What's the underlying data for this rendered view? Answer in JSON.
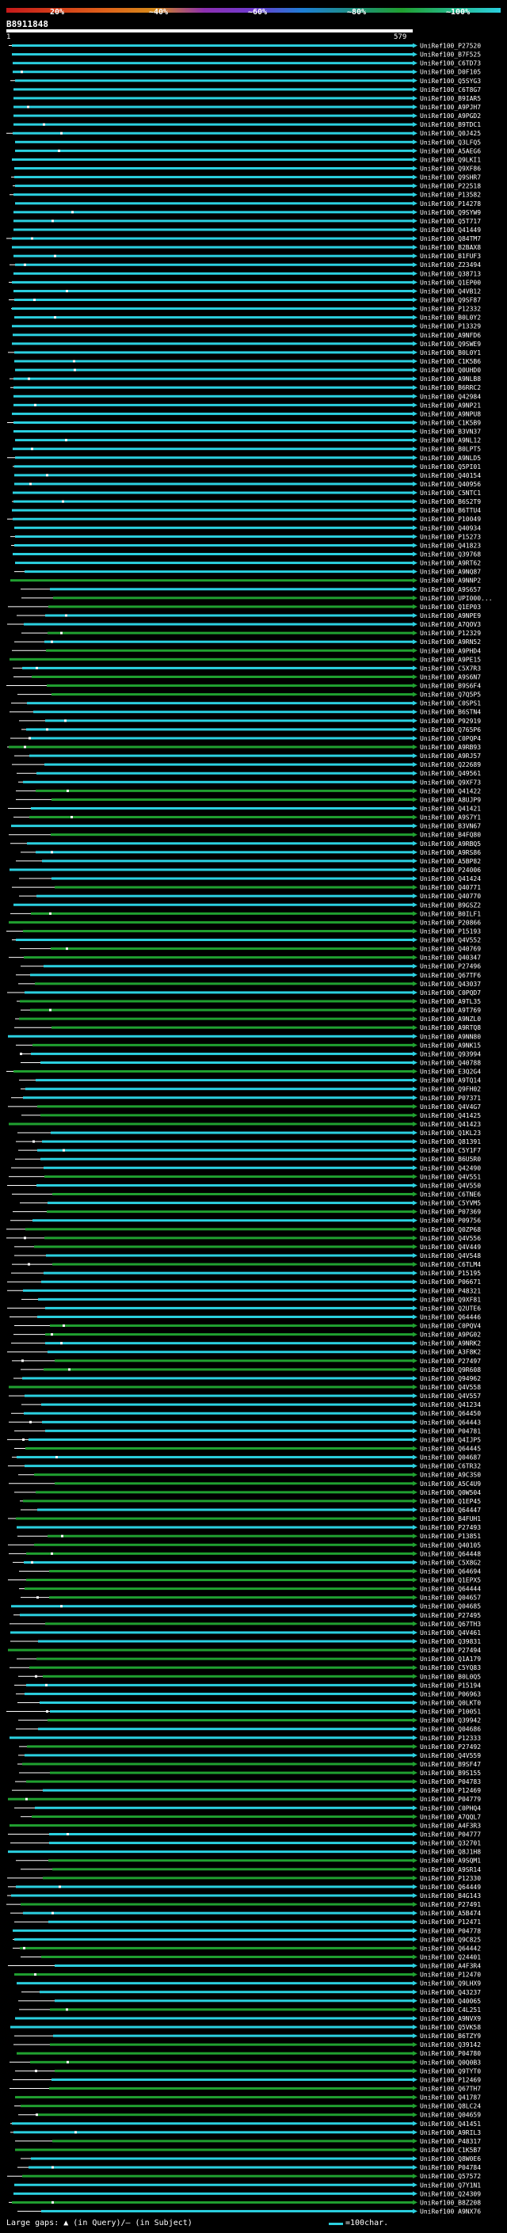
{
  "legend": {
    "percent_labels": [
      "20%",
      "~40%",
      "~60%",
      "~80%",
      "~100%"
    ],
    "gradient_colors": [
      "#c61a1a",
      "#e0621a",
      "#8d2fb0",
      "#1d7fd6",
      "#20a030",
      "#2bd0e0"
    ]
  },
  "query": {
    "id": "B8911848",
    "start": "1",
    "end": "579"
  },
  "colors": {
    "high_identity": "#2bd0e0",
    "medium_identity": "#20a030",
    "subject_line": "#ffffff",
    "gap_marker": "#ffffff",
    "background": "#000000"
  },
  "hit_ids": [
    "UniRef100_P27520",
    "UniRef100_B7F525",
    "UniRef100_C6TD73",
    "UniRef100_D0F105",
    "UniRef100_Q5SYG3",
    "UniRef100_C6T8G7",
    "UniRef100_B9IAR5",
    "UniRef100_A9PJH7",
    "UniRef100_A9PGD2",
    "UniRef100_B9TDC1",
    "UniRef100_Q0J425",
    "UniRef100_Q3LFQ5",
    "UniRef100_A5AEG6",
    "UniRef100_Q9LKI1",
    "UniRef100_Q9XF86",
    "UniRef100_Q9SHR7",
    "UniRef100_P22518",
    "UniRef100_P13582",
    "UniRef100_P14278",
    "UniRef100_Q9SYW9",
    "UniRef100_Q5T717",
    "UniRef100_Q41449",
    "UniRef100_Q84TM7",
    "UniRef100_B2BAX8",
    "UniRef100_B1FUF3",
    "UniRef100_Z23494",
    "UniRef100_Q38713",
    "UniRef100_Q1EP00",
    "UniRef100_Q4VB12",
    "UniRef100_Q9SF87",
    "UniRef100_P12332",
    "UniRef100_B0L0Y2",
    "UniRef100_P13329",
    "UniRef100_A9NFD6",
    "UniRef100_Q9SWE9",
    "UniRef100_B0L0Y1",
    "UniRef100_C1K5B6",
    "UniRef100_Q0UHD0",
    "UniRef100_A9NLB8",
    "UniRef100_B6RRC2",
    "UniRef100_Q42984",
    "UniRef100_A9NP21",
    "UniRef100_A9NPU8",
    "UniRef100_C1K5B9",
    "UniRef100_B3VN37",
    "UniRef100_A9NL12",
    "UniRef100_B0LPT5",
    "UniRef100_A9NLD5",
    "UniRef100_Q5PI01",
    "UniRef100_Q40154",
    "UniRef100_Q40956",
    "UniRef100_C5NTC1",
    "UniRef100_B6S2T9",
    "UniRef100_B6TTU4",
    "UniRef100_P10049",
    "UniRef100_Q40934",
    "UniRef100_P15273",
    "UniRef100_Q41823",
    "UniRef100_Q39768",
    "UniRef100_A9RT62",
    "UniRef100_A9NQ87",
    "UniRef100_A9NNP2",
    "UniRef100_A9S657",
    "UniRef100_UPI000...",
    "UniRef100_Q1EP03",
    "UniRef100_A9NPE9",
    "UniRef100_A7QOV3",
    "UniRef100_P12329",
    "UniRef100_A9RN52",
    "UniRef100_A9PHD4",
    "UniRef100_A9PE15",
    "UniRef100_C5X7R3",
    "UniRef100_A9S6N7",
    "UniRef100_B9S6F4",
    "UniRef100_Q7Q5P5",
    "UniRef100_C0SPS1",
    "UniRef100_B6STN4",
    "UniRef100_P92919",
    "UniRef100_Q765P6",
    "UniRef100_C0PQP4",
    "UniRef100_A9RB93",
    "UniRef100_A9RJ57",
    "UniRef100_Q22689",
    "UniRef100_Q49561",
    "UniRef100_Q9XF73",
    "UniRef100_Q41422",
    "UniRef100_A8UJP9",
    "UniRef100_Q41421",
    "UniRef100_A9S7Y1",
    "UniRef100_B3VN67",
    "UniRef100_B4FQ80",
    "UniRef100_A9RBQ5",
    "UniRef100_A9RS86",
    "UniRef100_A5BP82",
    "UniRef100_P24006",
    "UniRef100_Q41424",
    "UniRef100_Q40771",
    "UniRef100_Q40770",
    "UniRef100_B9GSZ2",
    "UniRef100_B0ILF1",
    "UniRef100_P20866",
    "UniRef100_P15193",
    "UniRef100_Q4V552",
    "UniRef100_Q40769",
    "UniRef100_Q40347",
    "UniRef100_P27496",
    "UniRef100_Q67TF6",
    "UniRef100_Q43037",
    "UniRef100_C0PQD7",
    "UniRef100_A9TL35",
    "UniRef100_A9T769",
    "UniRef100_A9NZL0",
    "UniRef100_A9RTQ8",
    "UniRef100_A9NN80",
    "UniRef100_A9NK15",
    "UniRef100_Q93994",
    "UniRef100_Q40788",
    "UniRef100_E3Q2G4",
    "UniRef100_A9TQ14",
    "UniRef100_Q9FH02",
    "UniRef100_P07371",
    "UniRef100_Q4V4G7",
    "UniRef100_Q41425",
    "UniRef100_Q41423",
    "UniRef100_Q1KL23",
    "UniRef100_Q81391",
    "UniRef100_C5Y1F7",
    "UniRef100_B6U5R0",
    "UniRef100_Q42490",
    "UniRef100_Q4V551",
    "UniRef100_Q4V550",
    "UniRef100_C6TNE6",
    "UniRef100_C5YVM5",
    "UniRef100_P07369",
    "UniRef100_P09756",
    "UniRef100_Q0ZP68",
    "UniRef100_Q4V556",
    "UniRef100_Q4V449",
    "UniRef100_Q4V548",
    "UniRef100_C6TLM4",
    "UniRef100_P15195",
    "UniRef100_P06671",
    "UniRef100_P48321",
    "UniRef100_Q9XF81",
    "UniRef100_Q2UTE6",
    "UniRef100_Q64446",
    "UniRef100_C0PQV4",
    "UniRef100_A9PG02",
    "UniRef100_A9NRK2",
    "UniRef100_A3F8K2",
    "UniRef100_P27497",
    "UniRef100_Q9R608",
    "UniRef100_Q94962",
    "UniRef100_Q4V558",
    "UniRef100_Q4V557",
    "UniRef100_Q41234",
    "UniRef100_Q64450",
    "UniRef100_Q64443",
    "UniRef100_P04781",
    "UniRef100_Q4IJP5",
    "UniRef100_Q64445",
    "UniRef100_Q04687",
    "UniRef100_C6TR32",
    "UniRef100_A9C3S0",
    "UniRef100_A5C4U9",
    "UniRef100_Q0W504",
    "UniRef100_Q1EP45",
    "UniRef100_Q64447",
    "UniRef100_B4FUH1",
    "UniRef100_P27493",
    "UniRef100_P13851",
    "UniRef100_Q40105",
    "UniRef100_Q64448",
    "UniRef100_C5X8G2",
    "UniRef100_Q64694",
    "UniRef100_Q1EPX5",
    "UniRef100_Q64444",
    "UniRef100_Q04657",
    "UniRef100_Q04685",
    "UniRef100_P27495",
    "UniRef100_Q67TH3",
    "UniRef100_Q4V461",
    "UniRef100_Q39831",
    "UniRef100_P27494",
    "UniRef100_Q1A179",
    "UniRef100_C5YQ83",
    "UniRef100_B0L0Q5",
    "UniRef100_P15194",
    "UniRef100_P06963",
    "UniRef100_Q0LKT0",
    "UniRef100_P10051",
    "UniRef100_Q39942",
    "UniRef100_Q04686",
    "UniRef100_P12333",
    "UniRef100_P27492",
    "UniRef100_Q4V559",
    "UniRef100_B9SF47",
    "UniRef100_B9S155",
    "UniRef100_P04783",
    "UniRef100_P12469",
    "UniRef100_P04779",
    "UniRef100_C0PHQ4",
    "UniRef100_A7QQL7",
    "UniRef100_A4F3R3",
    "UniRef100_P04777",
    "UniRef100_Q32701",
    "UniRef100_Q8J1H8",
    "UniRef100_A9SQM1",
    "UniRef100_A9SR14",
    "UniRef100_P12330",
    "UniRef100_Q64449",
    "UniRef100_B4G143",
    "UniRef100_P27491",
    "UniRef100_A5B474",
    "UniRef100_P12471",
    "UniRef100_P04778",
    "UniRef100_Q9C825",
    "UniRef100_Q64442",
    "UniRef100_Q24401",
    "UniRef100_A4F3R4",
    "UniRef100_P12470",
    "UniRef100_Q9LHX9",
    "UniRef100_Q43237",
    "UniRef100_Q40065",
    "UniRef100_C4L251",
    "UniRef100_A9NVX9",
    "UniRef100_Q5VK58",
    "UniRef100_B6TZY9",
    "UniRef100_Q39142",
    "UniRef100_P04780",
    "UniRef100_Q0Q0B3",
    "UniRef100_Q9TYT0",
    "UniRef100_P12469",
    "UniRef100_Q67TH7",
    "UniRef100_Q41787",
    "UniRef100_Q8LC24",
    "UniRef100_Q04659",
    "UniRef100_Q41451",
    "UniRef100_A9RIL3",
    "UniRef100_P48317",
    "UniRef100_C1K5B7",
    "UniRef100_Q8W0E6",
    "UniRef100_P04784",
    "UniRef100_Q57572",
    "UniRef100_Q7Y1N1",
    "UniRef100_Q24309",
    "UniRef100_B8Z208",
    "UniRef100_A9NX76"
  ],
  "footer": {
    "gaps_text": "Large gaps: ▲ (in Query)/— (in Subject)",
    "scale_text": "=100char."
  }
}
